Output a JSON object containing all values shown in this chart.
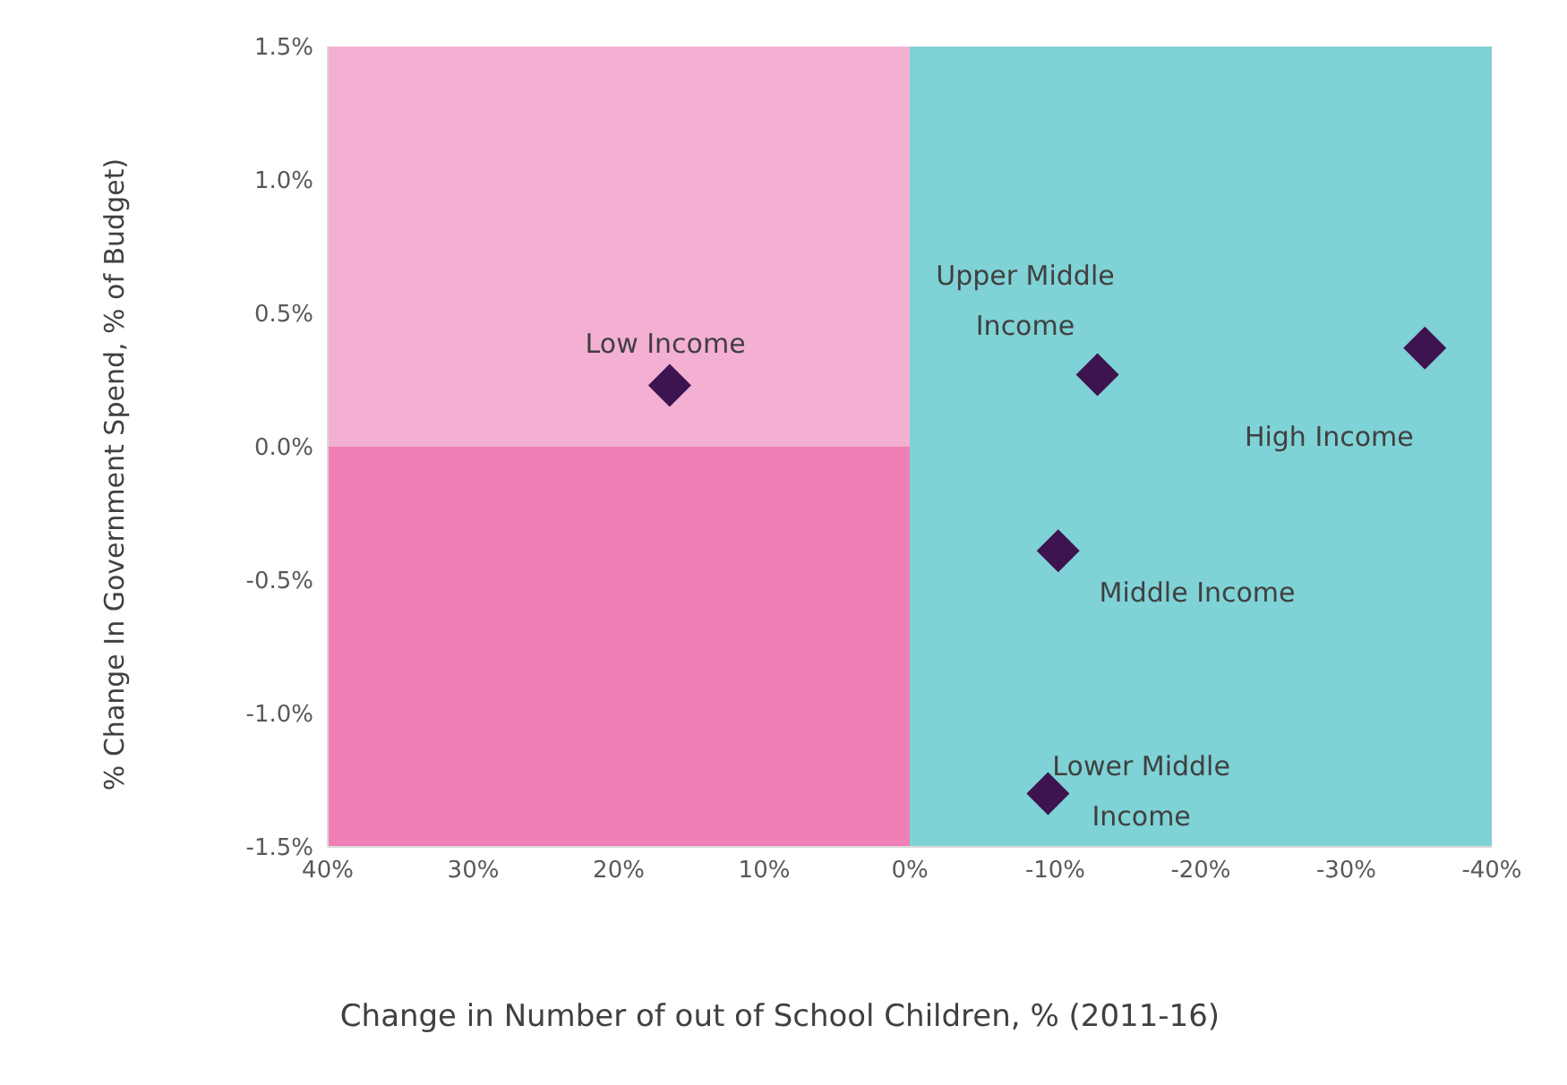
{
  "chart_data": {
    "type": "scatter",
    "xlabel": "Change in Number of out of School Children, % (2011-16)",
    "ylabel": "% Change In Government Spend, % of Budget)",
    "x": [
      16.5,
      -12.9,
      -35.4,
      -10.2,
      -9.5
    ],
    "values": [
      0.23,
      0.27,
      0.37,
      -0.39,
      -1.3
    ],
    "color": "#3d1350",
    "marker": "diamond",
    "xlim": [
      40,
      -40
    ],
    "xticks": [
      {
        "value": 40,
        "label": "40%"
      },
      {
        "value": 30,
        "label": "30%"
      },
      {
        "value": 20,
        "label": "20%"
      },
      {
        "value": 10,
        "label": "10%"
      },
      {
        "value": 0,
        "label": "0%"
      },
      {
        "value": -10,
        "label": "-10%"
      },
      {
        "value": -20,
        "label": "-20%"
      },
      {
        "value": -30,
        "label": "-30%"
      },
      {
        "value": -40,
        "label": "-40%"
      }
    ],
    "ylim": [
      -1.5,
      1.5
    ],
    "yticks": [
      {
        "value": -1.5,
        "label": "-1.5%"
      },
      {
        "value": -1,
        "label": "-1.0%"
      },
      {
        "value": -0.5,
        "label": "-0.5%"
      },
      {
        "value": 0,
        "label": "0.0%"
      },
      {
        "value": 0.5,
        "label": "0.5%"
      },
      {
        "value": 1,
        "label": "1.0%"
      },
      {
        "value": 1.5,
        "label": "1.5%"
      }
    ],
    "bands": [
      {
        "axis": "x",
        "from": 40,
        "to": 0,
        "color": "#f4b0d2"
      },
      {
        "axis": "y",
        "from": -1.5,
        "to": 0,
        "color": "#ef7fb4"
      },
      {
        "axis": "x",
        "from": 0,
        "to": -40,
        "color": "#7fd2d6"
      }
    ],
    "annotations": [
      {
        "text": "Low Income",
        "x": 16.5,
        "y": 0.23
      },
      {
        "text": "Upper Middle Income",
        "x": -12.9,
        "y": 0.27
      },
      {
        "text": "High Income",
        "x": -35.4,
        "y": 0.37
      },
      {
        "text": "Middle Income",
        "x": -10.2,
        "y": -0.39
      },
      {
        "text": "Lower Middle Income",
        "x": -9.5,
        "y": -1.3
      }
    ],
    "grid": false
  }
}
